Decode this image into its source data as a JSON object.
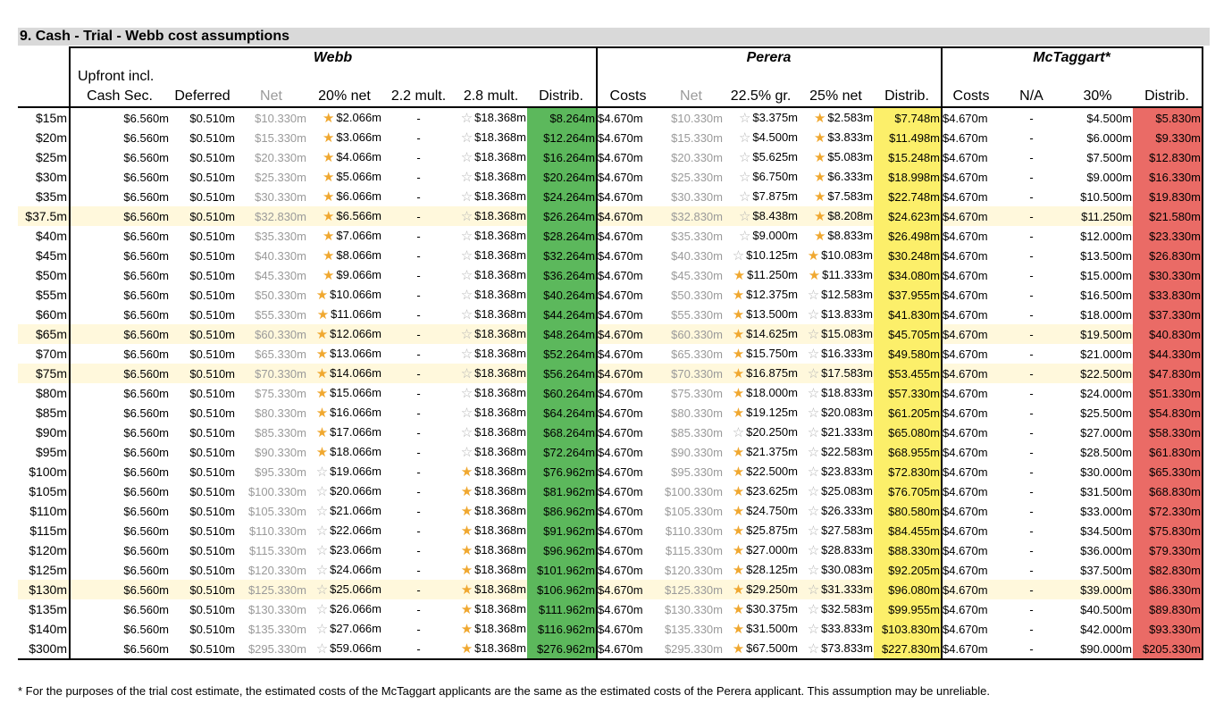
{
  "title": "9.  Cash - Trial - Webb cost assumptions",
  "groups": {
    "webb": "Webb",
    "perera": "Perera",
    "mctaggart": "McTaggart*"
  },
  "headers": {
    "upfront_top": "Upfront incl.",
    "upfront": "Cash Sec.",
    "deferred": "Deferred",
    "net": "Net",
    "net20": "20% net",
    "mult22": "2.2 mult.",
    "mult28": "2.8 mult.",
    "distrib": "Distrib.",
    "p_costs": "Costs",
    "p_net": "Net",
    "p_gr": "22.5% gr.",
    "p_net25": "25% net",
    "p_distrib": "Distrib.",
    "m_costs": "Costs",
    "m_na": "N/A",
    "m_30": "30%",
    "m_distrib": "Distrib."
  },
  "colors": {
    "green": "#5cb85c",
    "yellow": "#fcef6a",
    "red": "#ea6b66",
    "highlight": "#fff8dc",
    "title_bg": "#d9d9d9"
  },
  "rows": [
    {
      "label": "$15m",
      "hl": false,
      "up": "$6.560m",
      "def": "$0.510m",
      "net": "$10.330m",
      "n20": "$2.066m",
      "n20s": true,
      "m22": "-",
      "m28": "$18.368m",
      "m28s": false,
      "dist": "$8.264m",
      "pc": "$4.670m",
      "pn": "$10.330m",
      "pg": "$3.375m",
      "pgs": false,
      "p25": "$2.583m",
      "p25s": true,
      "pd": "$7.748m",
      "mc": "$4.670m",
      "mna": "-",
      "m30": "$4.500m",
      "md": "$5.830m"
    },
    {
      "label": "$20m",
      "hl": false,
      "up": "$6.560m",
      "def": "$0.510m",
      "net": "$15.330m",
      "n20": "$3.066m",
      "n20s": true,
      "m22": "-",
      "m28": "$18.368m",
      "m28s": false,
      "dist": "$12.264m",
      "pc": "$4.670m",
      "pn": "$15.330m",
      "pg": "$4.500m",
      "pgs": false,
      "p25": "$3.833m",
      "p25s": true,
      "pd": "$11.498m",
      "mc": "$4.670m",
      "mna": "-",
      "m30": "$6.000m",
      "md": "$9.330m"
    },
    {
      "label": "$25m",
      "hl": false,
      "up": "$6.560m",
      "def": "$0.510m",
      "net": "$20.330m",
      "n20": "$4.066m",
      "n20s": true,
      "m22": "-",
      "m28": "$18.368m",
      "m28s": false,
      "dist": "$16.264m",
      "pc": "$4.670m",
      "pn": "$20.330m",
      "pg": "$5.625m",
      "pgs": false,
      "p25": "$5.083m",
      "p25s": true,
      "pd": "$15.248m",
      "mc": "$4.670m",
      "mna": "-",
      "m30": "$7.500m",
      "md": "$12.830m"
    },
    {
      "label": "$30m",
      "hl": false,
      "up": "$6.560m",
      "def": "$0.510m",
      "net": "$25.330m",
      "n20": "$5.066m",
      "n20s": true,
      "m22": "-",
      "m28": "$18.368m",
      "m28s": false,
      "dist": "$20.264m",
      "pc": "$4.670m",
      "pn": "$25.330m",
      "pg": "$6.750m",
      "pgs": false,
      "p25": "$6.333m",
      "p25s": true,
      "pd": "$18.998m",
      "mc": "$4.670m",
      "mna": "-",
      "m30": "$9.000m",
      "md": "$16.330m"
    },
    {
      "label": "$35m",
      "hl": false,
      "up": "$6.560m",
      "def": "$0.510m",
      "net": "$30.330m",
      "n20": "$6.066m",
      "n20s": true,
      "m22": "-",
      "m28": "$18.368m",
      "m28s": false,
      "dist": "$24.264m",
      "pc": "$4.670m",
      "pn": "$30.330m",
      "pg": "$7.875m",
      "pgs": false,
      "p25": "$7.583m",
      "p25s": true,
      "pd": "$22.748m",
      "mc": "$4.670m",
      "mna": "-",
      "m30": "$10.500m",
      "md": "$19.830m"
    },
    {
      "label": "$37.5m",
      "hl": true,
      "up": "$6.560m",
      "def": "$0.510m",
      "net": "$32.830m",
      "n20": "$6.566m",
      "n20s": true,
      "m22": "-",
      "m28": "$18.368m",
      "m28s": false,
      "dist": "$26.264m",
      "pc": "$4.670m",
      "pn": "$32.830m",
      "pg": "$8.438m",
      "pgs": false,
      "p25": "$8.208m",
      "p25s": true,
      "pd": "$24.623m",
      "mc": "$4.670m",
      "mna": "-",
      "m30": "$11.250m",
      "md": "$21.580m"
    },
    {
      "label": "$40m",
      "hl": false,
      "up": "$6.560m",
      "def": "$0.510m",
      "net": "$35.330m",
      "n20": "$7.066m",
      "n20s": true,
      "m22": "-",
      "m28": "$18.368m",
      "m28s": false,
      "dist": "$28.264m",
      "pc": "$4.670m",
      "pn": "$35.330m",
      "pg": "$9.000m",
      "pgs": false,
      "p25": "$8.833m",
      "p25s": true,
      "pd": "$26.498m",
      "mc": "$4.670m",
      "mna": "-",
      "m30": "$12.000m",
      "md": "$23.330m"
    },
    {
      "label": "$45m",
      "hl": false,
      "up": "$6.560m",
      "def": "$0.510m",
      "net": "$40.330m",
      "n20": "$8.066m",
      "n20s": true,
      "m22": "-",
      "m28": "$18.368m",
      "m28s": false,
      "dist": "$32.264m",
      "pc": "$4.670m",
      "pn": "$40.330m",
      "pg": "$10.125m",
      "pgs": false,
      "p25": "$10.083m",
      "p25s": true,
      "pd": "$30.248m",
      "mc": "$4.670m",
      "mna": "-",
      "m30": "$13.500m",
      "md": "$26.830m"
    },
    {
      "label": "$50m",
      "hl": false,
      "up": "$6.560m",
      "def": "$0.510m",
      "net": "$45.330m",
      "n20": "$9.066m",
      "n20s": true,
      "m22": "-",
      "m28": "$18.368m",
      "m28s": false,
      "dist": "$36.264m",
      "pc": "$4.670m",
      "pn": "$45.330m",
      "pg": "$11.250m",
      "pgs": true,
      "p25": "$11.333m",
      "p25s": true,
      "pd": "$34.080m",
      "mc": "$4.670m",
      "mna": "-",
      "m30": "$15.000m",
      "md": "$30.330m"
    },
    {
      "label": "$55m",
      "hl": false,
      "up": "$6.560m",
      "def": "$0.510m",
      "net": "$50.330m",
      "n20": "$10.066m",
      "n20s": true,
      "m22": "-",
      "m28": "$18.368m",
      "m28s": false,
      "dist": "$40.264m",
      "pc": "$4.670m",
      "pn": "$50.330m",
      "pg": "$12.375m",
      "pgs": true,
      "p25": "$12.583m",
      "p25s": false,
      "pd": "$37.955m",
      "mc": "$4.670m",
      "mna": "-",
      "m30": "$16.500m",
      "md": "$33.830m"
    },
    {
      "label": "$60m",
      "hl": false,
      "up": "$6.560m",
      "def": "$0.510m",
      "net": "$55.330m",
      "n20": "$11.066m",
      "n20s": true,
      "m22": "-",
      "m28": "$18.368m",
      "m28s": false,
      "dist": "$44.264m",
      "pc": "$4.670m",
      "pn": "$55.330m",
      "pg": "$13.500m",
      "pgs": true,
      "p25": "$13.833m",
      "p25s": false,
      "pd": "$41.830m",
      "mc": "$4.670m",
      "mna": "-",
      "m30": "$18.000m",
      "md": "$37.330m"
    },
    {
      "label": "$65m",
      "hl": true,
      "up": "$6.560m",
      "def": "$0.510m",
      "net": "$60.330m",
      "n20": "$12.066m",
      "n20s": true,
      "m22": "-",
      "m28": "$18.368m",
      "m28s": false,
      "dist": "$48.264m",
      "pc": "$4.670m",
      "pn": "$60.330m",
      "pg": "$14.625m",
      "pgs": true,
      "p25": "$15.083m",
      "p25s": false,
      "pd": "$45.705m",
      "mc": "$4.670m",
      "mna": "-",
      "m30": "$19.500m",
      "md": "$40.830m"
    },
    {
      "label": "$70m",
      "hl": false,
      "up": "$6.560m",
      "def": "$0.510m",
      "net": "$65.330m",
      "n20": "$13.066m",
      "n20s": true,
      "m22": "-",
      "m28": "$18.368m",
      "m28s": false,
      "dist": "$52.264m",
      "pc": "$4.670m",
      "pn": "$65.330m",
      "pg": "$15.750m",
      "pgs": true,
      "p25": "$16.333m",
      "p25s": false,
      "pd": "$49.580m",
      "mc": "$4.670m",
      "mna": "-",
      "m30": "$21.000m",
      "md": "$44.330m"
    },
    {
      "label": "$75m",
      "hl": true,
      "up": "$6.560m",
      "def": "$0.510m",
      "net": "$70.330m",
      "n20": "$14.066m",
      "n20s": true,
      "m22": "-",
      "m28": "$18.368m",
      "m28s": false,
      "dist": "$56.264m",
      "pc": "$4.670m",
      "pn": "$70.330m",
      "pg": "$16.875m",
      "pgs": true,
      "p25": "$17.583m",
      "p25s": false,
      "pd": "$53.455m",
      "mc": "$4.670m",
      "mna": "-",
      "m30": "$22.500m",
      "md": "$47.830m"
    },
    {
      "label": "$80m",
      "hl": false,
      "up": "$6.560m",
      "def": "$0.510m",
      "net": "$75.330m",
      "n20": "$15.066m",
      "n20s": true,
      "m22": "-",
      "m28": "$18.368m",
      "m28s": false,
      "dist": "$60.264m",
      "pc": "$4.670m",
      "pn": "$75.330m",
      "pg": "$18.000m",
      "pgs": true,
      "p25": "$18.833m",
      "p25s": false,
      "pd": "$57.330m",
      "mc": "$4.670m",
      "mna": "-",
      "m30": "$24.000m",
      "md": "$51.330m"
    },
    {
      "label": "$85m",
      "hl": false,
      "up": "$6.560m",
      "def": "$0.510m",
      "net": "$80.330m",
      "n20": "$16.066m",
      "n20s": true,
      "m22": "-",
      "m28": "$18.368m",
      "m28s": false,
      "dist": "$64.264m",
      "pc": "$4.670m",
      "pn": "$80.330m",
      "pg": "$19.125m",
      "pgs": true,
      "p25": "$20.083m",
      "p25s": false,
      "pd": "$61.205m",
      "mc": "$4.670m",
      "mna": "-",
      "m30": "$25.500m",
      "md": "$54.830m"
    },
    {
      "label": "$90m",
      "hl": false,
      "up": "$6.560m",
      "def": "$0.510m",
      "net": "$85.330m",
      "n20": "$17.066m",
      "n20s": true,
      "m22": "-",
      "m28": "$18.368m",
      "m28s": false,
      "dist": "$68.264m",
      "pc": "$4.670m",
      "pn": "$85.330m",
      "pg": "$20.250m",
      "pgs": false,
      "p25": "$21.333m",
      "p25s": false,
      "pd": "$65.080m",
      "mc": "$4.670m",
      "mna": "-",
      "m30": "$27.000m",
      "md": "$58.330m"
    },
    {
      "label": "$95m",
      "hl": false,
      "up": "$6.560m",
      "def": "$0.510m",
      "net": "$90.330m",
      "n20": "$18.066m",
      "n20s": true,
      "m22": "-",
      "m28": "$18.368m",
      "m28s": false,
      "dist": "$72.264m",
      "pc": "$4.670m",
      "pn": "$90.330m",
      "pg": "$21.375m",
      "pgs": true,
      "p25": "$22.583m",
      "p25s": false,
      "pd": "$68.955m",
      "mc": "$4.670m",
      "mna": "-",
      "m30": "$28.500m",
      "md": "$61.830m"
    },
    {
      "label": "$100m",
      "hl": false,
      "up": "$6.560m",
      "def": "$0.510m",
      "net": "$95.330m",
      "n20": "$19.066m",
      "n20s": false,
      "m22": "-",
      "m28": "$18.368m",
      "m28s": true,
      "dist": "$76.962m",
      "pc": "$4.670m",
      "pn": "$95.330m",
      "pg": "$22.500m",
      "pgs": true,
      "p25": "$23.833m",
      "p25s": false,
      "pd": "$72.830m",
      "mc": "$4.670m",
      "mna": "-",
      "m30": "$30.000m",
      "md": "$65.330m"
    },
    {
      "label": "$105m",
      "hl": false,
      "up": "$6.560m",
      "def": "$0.510m",
      "net": "$100.330m",
      "n20": "$20.066m",
      "n20s": false,
      "m22": "-",
      "m28": "$18.368m",
      "m28s": true,
      "dist": "$81.962m",
      "pc": "$4.670m",
      "pn": "$100.330m",
      "pg": "$23.625m",
      "pgs": true,
      "p25": "$25.083m",
      "p25s": false,
      "pd": "$76.705m",
      "mc": "$4.670m",
      "mna": "-",
      "m30": "$31.500m",
      "md": "$68.830m"
    },
    {
      "label": "$110m",
      "hl": false,
      "up": "$6.560m",
      "def": "$0.510m",
      "net": "$105.330m",
      "n20": "$21.066m",
      "n20s": false,
      "m22": "-",
      "m28": "$18.368m",
      "m28s": true,
      "dist": "$86.962m",
      "pc": "$4.670m",
      "pn": "$105.330m",
      "pg": "$24.750m",
      "pgs": true,
      "p25": "$26.333m",
      "p25s": false,
      "pd": "$80.580m",
      "mc": "$4.670m",
      "mna": "-",
      "m30": "$33.000m",
      "md": "$72.330m"
    },
    {
      "label": "$115m",
      "hl": false,
      "up": "$6.560m",
      "def": "$0.510m",
      "net": "$110.330m",
      "n20": "$22.066m",
      "n20s": false,
      "m22": "-",
      "m28": "$18.368m",
      "m28s": true,
      "dist": "$91.962m",
      "pc": "$4.670m",
      "pn": "$110.330m",
      "pg": "$25.875m",
      "pgs": true,
      "p25": "$27.583m",
      "p25s": false,
      "pd": "$84.455m",
      "mc": "$4.670m",
      "mna": "-",
      "m30": "$34.500m",
      "md": "$75.830m"
    },
    {
      "label": "$120m",
      "hl": false,
      "up": "$6.560m",
      "def": "$0.510m",
      "net": "$115.330m",
      "n20": "$23.066m",
      "n20s": false,
      "m22": "-",
      "m28": "$18.368m",
      "m28s": true,
      "dist": "$96.962m",
      "pc": "$4.670m",
      "pn": "$115.330m",
      "pg": "$27.000m",
      "pgs": true,
      "p25": "$28.833m",
      "p25s": false,
      "pd": "$88.330m",
      "mc": "$4.670m",
      "mna": "-",
      "m30": "$36.000m",
      "md": "$79.330m"
    },
    {
      "label": "$125m",
      "hl": false,
      "up": "$6.560m",
      "def": "$0.510m",
      "net": "$120.330m",
      "n20": "$24.066m",
      "n20s": false,
      "m22": "-",
      "m28": "$18.368m",
      "m28s": true,
      "dist": "$101.962m",
      "pc": "$4.670m",
      "pn": "$120.330m",
      "pg": "$28.125m",
      "pgs": true,
      "p25": "$30.083m",
      "p25s": false,
      "pd": "$92.205m",
      "mc": "$4.670m",
      "mna": "-",
      "m30": "$37.500m",
      "md": "$82.830m"
    },
    {
      "label": "$130m",
      "hl": true,
      "up": "$6.560m",
      "def": "$0.510m",
      "net": "$125.330m",
      "n20": "$25.066m",
      "n20s": false,
      "m22": "-",
      "m28": "$18.368m",
      "m28s": true,
      "dist": "$106.962m",
      "pc": "$4.670m",
      "pn": "$125.330m",
      "pg": "$29.250m",
      "pgs": true,
      "p25": "$31.333m",
      "p25s": false,
      "pd": "$96.080m",
      "mc": "$4.670m",
      "mna": "-",
      "m30": "$39.000m",
      "md": "$86.330m"
    },
    {
      "label": "$135m",
      "hl": false,
      "up": "$6.560m",
      "def": "$0.510m",
      "net": "$130.330m",
      "n20": "$26.066m",
      "n20s": false,
      "m22": "-",
      "m28": "$18.368m",
      "m28s": true,
      "dist": "$111.962m",
      "pc": "$4.670m",
      "pn": "$130.330m",
      "pg": "$30.375m",
      "pgs": true,
      "p25": "$32.583m",
      "p25s": false,
      "pd": "$99.955m",
      "mc": "$4.670m",
      "mna": "-",
      "m30": "$40.500m",
      "md": "$89.830m"
    },
    {
      "label": "$140m",
      "hl": false,
      "up": "$6.560m",
      "def": "$0.510m",
      "net": "$135.330m",
      "n20": "$27.066m",
      "n20s": false,
      "m22": "-",
      "m28": "$18.368m",
      "m28s": true,
      "dist": "$116.962m",
      "pc": "$4.670m",
      "pn": "$135.330m",
      "pg": "$31.500m",
      "pgs": true,
      "p25": "$33.833m",
      "p25s": false,
      "pd": "$103.830m",
      "mc": "$4.670m",
      "mna": "-",
      "m30": "$42.000m",
      "md": "$93.330m"
    },
    {
      "label": "$300m",
      "hl": false,
      "up": "$6.560m",
      "def": "$0.510m",
      "net": "$295.330m",
      "n20": "$59.066m",
      "n20s": false,
      "m22": "-",
      "m28": "$18.368m",
      "m28s": true,
      "dist": "$276.962m",
      "pc": "$4.670m",
      "pn": "$295.330m",
      "pg": "$67.500m",
      "pgs": true,
      "p25": "$73.833m",
      "p25s": false,
      "pd": "$227.830m",
      "mc": "$4.670m",
      "mna": "-",
      "m30": "$90.000m",
      "md": "$205.330m"
    }
  ],
  "footnote": "* For the purposes of the trial cost estimate, the estimated costs of the McTaggart applicants are the same as the estimated costs of the Perera applicant. This assumption may be unreliable."
}
